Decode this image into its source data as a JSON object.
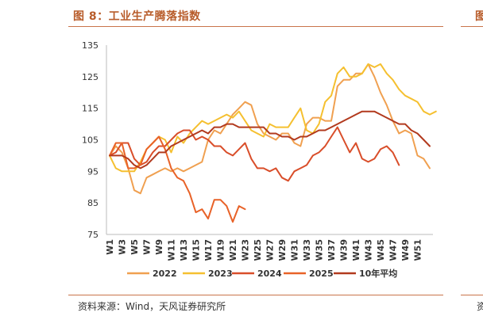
{
  "title": "图 8：工业生产腾落指数",
  "source": "资料来源：Wind，天风证券研究所",
  "edge_title": "图",
  "edge_source": "资",
  "chart_data": {
    "type": "line",
    "ylim": [
      75,
      135
    ],
    "yticks": [
      75,
      85,
      95,
      105,
      115,
      125,
      135
    ],
    "xlabels": [
      "W1",
      "W3",
      "W5",
      "W7",
      "W9",
      "W11",
      "W13",
      "W15",
      "W17",
      "W19",
      "W21",
      "W23",
      "W25",
      "W27",
      "W29",
      "W31",
      "W33",
      "W35",
      "W37",
      "W39",
      "W41",
      "W43",
      "W45",
      "W47",
      "W49",
      "W51"
    ],
    "series": [
      {
        "name": "2022",
        "color": "#f0a050",
        "values": [
          100,
          103,
          101,
          96,
          89,
          88,
          93,
          94,
          95,
          96,
          95,
          96,
          95,
          96,
          97,
          98,
          105,
          108,
          107,
          110,
          113,
          115,
          117,
          116,
          110,
          107,
          106,
          105,
          107,
          107,
          104,
          103,
          110,
          112,
          112,
          111,
          111,
          122,
          124,
          124,
          126,
          126,
          129,
          125,
          120,
          116,
          111,
          107,
          108,
          107,
          100,
          99,
          96
        ]
      },
      {
        "name": "2023",
        "color": "#f5c030",
        "values": [
          100,
          96,
          95,
          95,
          95,
          98,
          102,
          104,
          106,
          105,
          101,
          106,
          104,
          107,
          109,
          111,
          110,
          111,
          112,
          113,
          112,
          114,
          111,
          108,
          107,
          106,
          110,
          109,
          109,
          109,
          112,
          115,
          108,
          107,
          110,
          117,
          119,
          126,
          128,
          125,
          125,
          126,
          129,
          128,
          129,
          126,
          124,
          121,
          119,
          118,
          117,
          114,
          113,
          114
        ]
      },
      {
        "name": "2024",
        "color": "#d94e2a",
        "values": [
          100,
          101,
          104,
          104,
          99,
          97,
          98,
          101,
          103,
          103,
          105,
          107,
          108,
          108,
          105,
          106,
          105,
          103,
          103,
          101,
          100,
          102,
          104,
          99,
          96,
          96,
          95,
          96,
          93,
          92,
          95,
          96,
          97,
          100,
          101,
          103,
          106,
          109,
          105,
          101,
          104,
          99,
          98,
          99,
          102,
          103,
          101,
          97
        ]
      },
      {
        "name": "2025",
        "color": "#e86228",
        "values": [
          100,
          104,
          104,
          96,
          96,
          97,
          102,
          104,
          106,
          102,
          96,
          93,
          92,
          88,
          82,
          83,
          80,
          86,
          86,
          84,
          79,
          84,
          83
        ]
      },
      {
        "name": "10年平均",
        "color": "#b23a1e",
        "values": [
          100,
          100,
          100,
          99,
          97,
          96,
          97,
          99,
          101,
          101,
          103,
          104,
          105,
          106,
          107,
          108,
          107,
          109,
          109,
          110,
          110,
          109,
          109,
          109,
          109,
          109,
          107,
          107,
          106,
          106,
          105,
          106,
          106,
          107,
          108,
          108,
          109,
          110,
          111,
          112,
          113,
          114,
          114,
          114,
          113,
          112,
          111,
          110,
          110,
          108,
          107,
          105,
          103
        ]
      }
    ]
  }
}
